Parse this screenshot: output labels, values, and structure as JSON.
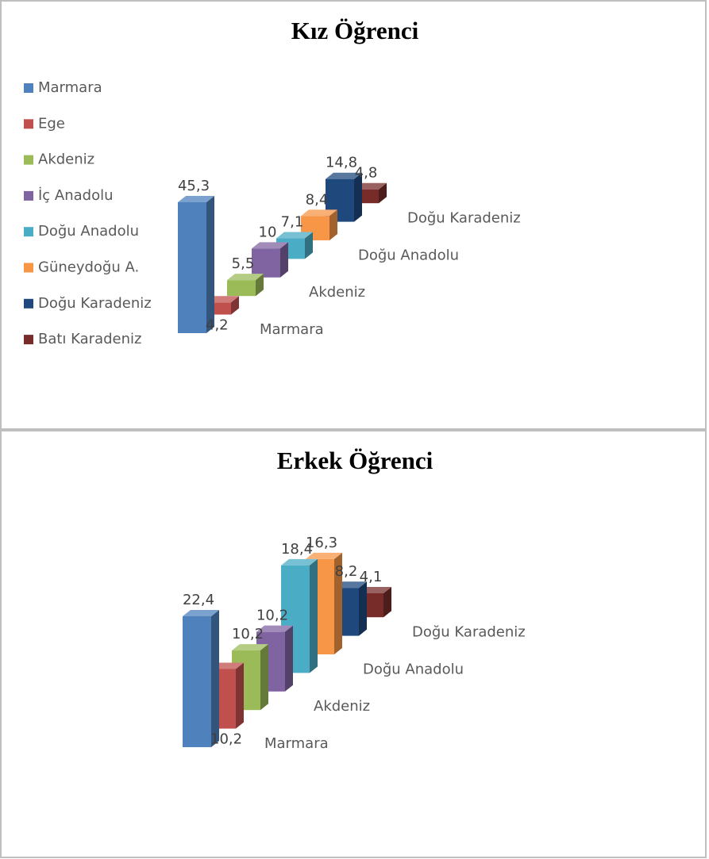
{
  "chart_data": [
    {
      "type": "bar3d",
      "title": "Kız Öğrenci",
      "categories": [
        "Marmara",
        null,
        "Akdeniz",
        null,
        "Doğu Anadolu",
        null,
        "Doğu Karadeniz",
        null
      ],
      "values": [
        45.3,
        4.2,
        5.5,
        10,
        7.1,
        8.4,
        14.8,
        4.8
      ],
      "value_labels": [
        "45,3",
        "4,2",
        "5,5",
        "10",
        "7,1",
        "8,4",
        "14,8",
        "4,8"
      ],
      "colors": [
        "#4f81bd",
        "#c0504d",
        "#9bbb59",
        "#8064a2",
        "#4bacc6",
        "#f79646",
        "#1f497d",
        "#772c2a"
      ],
      "legend": {
        "position": "left",
        "labels": [
          "Marmara",
          "Ege",
          "Akdeniz",
          "İç Anadolu",
          "Doğu Anadolu",
          "Güneydoğu A.",
          "Doğu Karadeniz",
          "Batı Karadeniz"
        ]
      }
    },
    {
      "type": "bar3d",
      "title": "Erkek Öğrenci",
      "categories": [
        "Marmara",
        null,
        "Akdeniz",
        null,
        "Doğu Anadolu",
        null,
        "Doğu Karadeniz",
        null
      ],
      "values": [
        22.4,
        10.2,
        10.2,
        10.2,
        18.4,
        16.3,
        8.2,
        4.1
      ],
      "value_labels": [
        "22,4",
        "10,2",
        "10,2",
        "10,2",
        "18,4",
        "16,3",
        "8,2",
        "4,1"
      ],
      "colors": [
        "#4f81bd",
        "#c0504d",
        "#9bbb59",
        "#8064a2",
        "#4bacc6",
        "#f79646",
        "#1f497d",
        "#772c2a"
      ]
    }
  ]
}
